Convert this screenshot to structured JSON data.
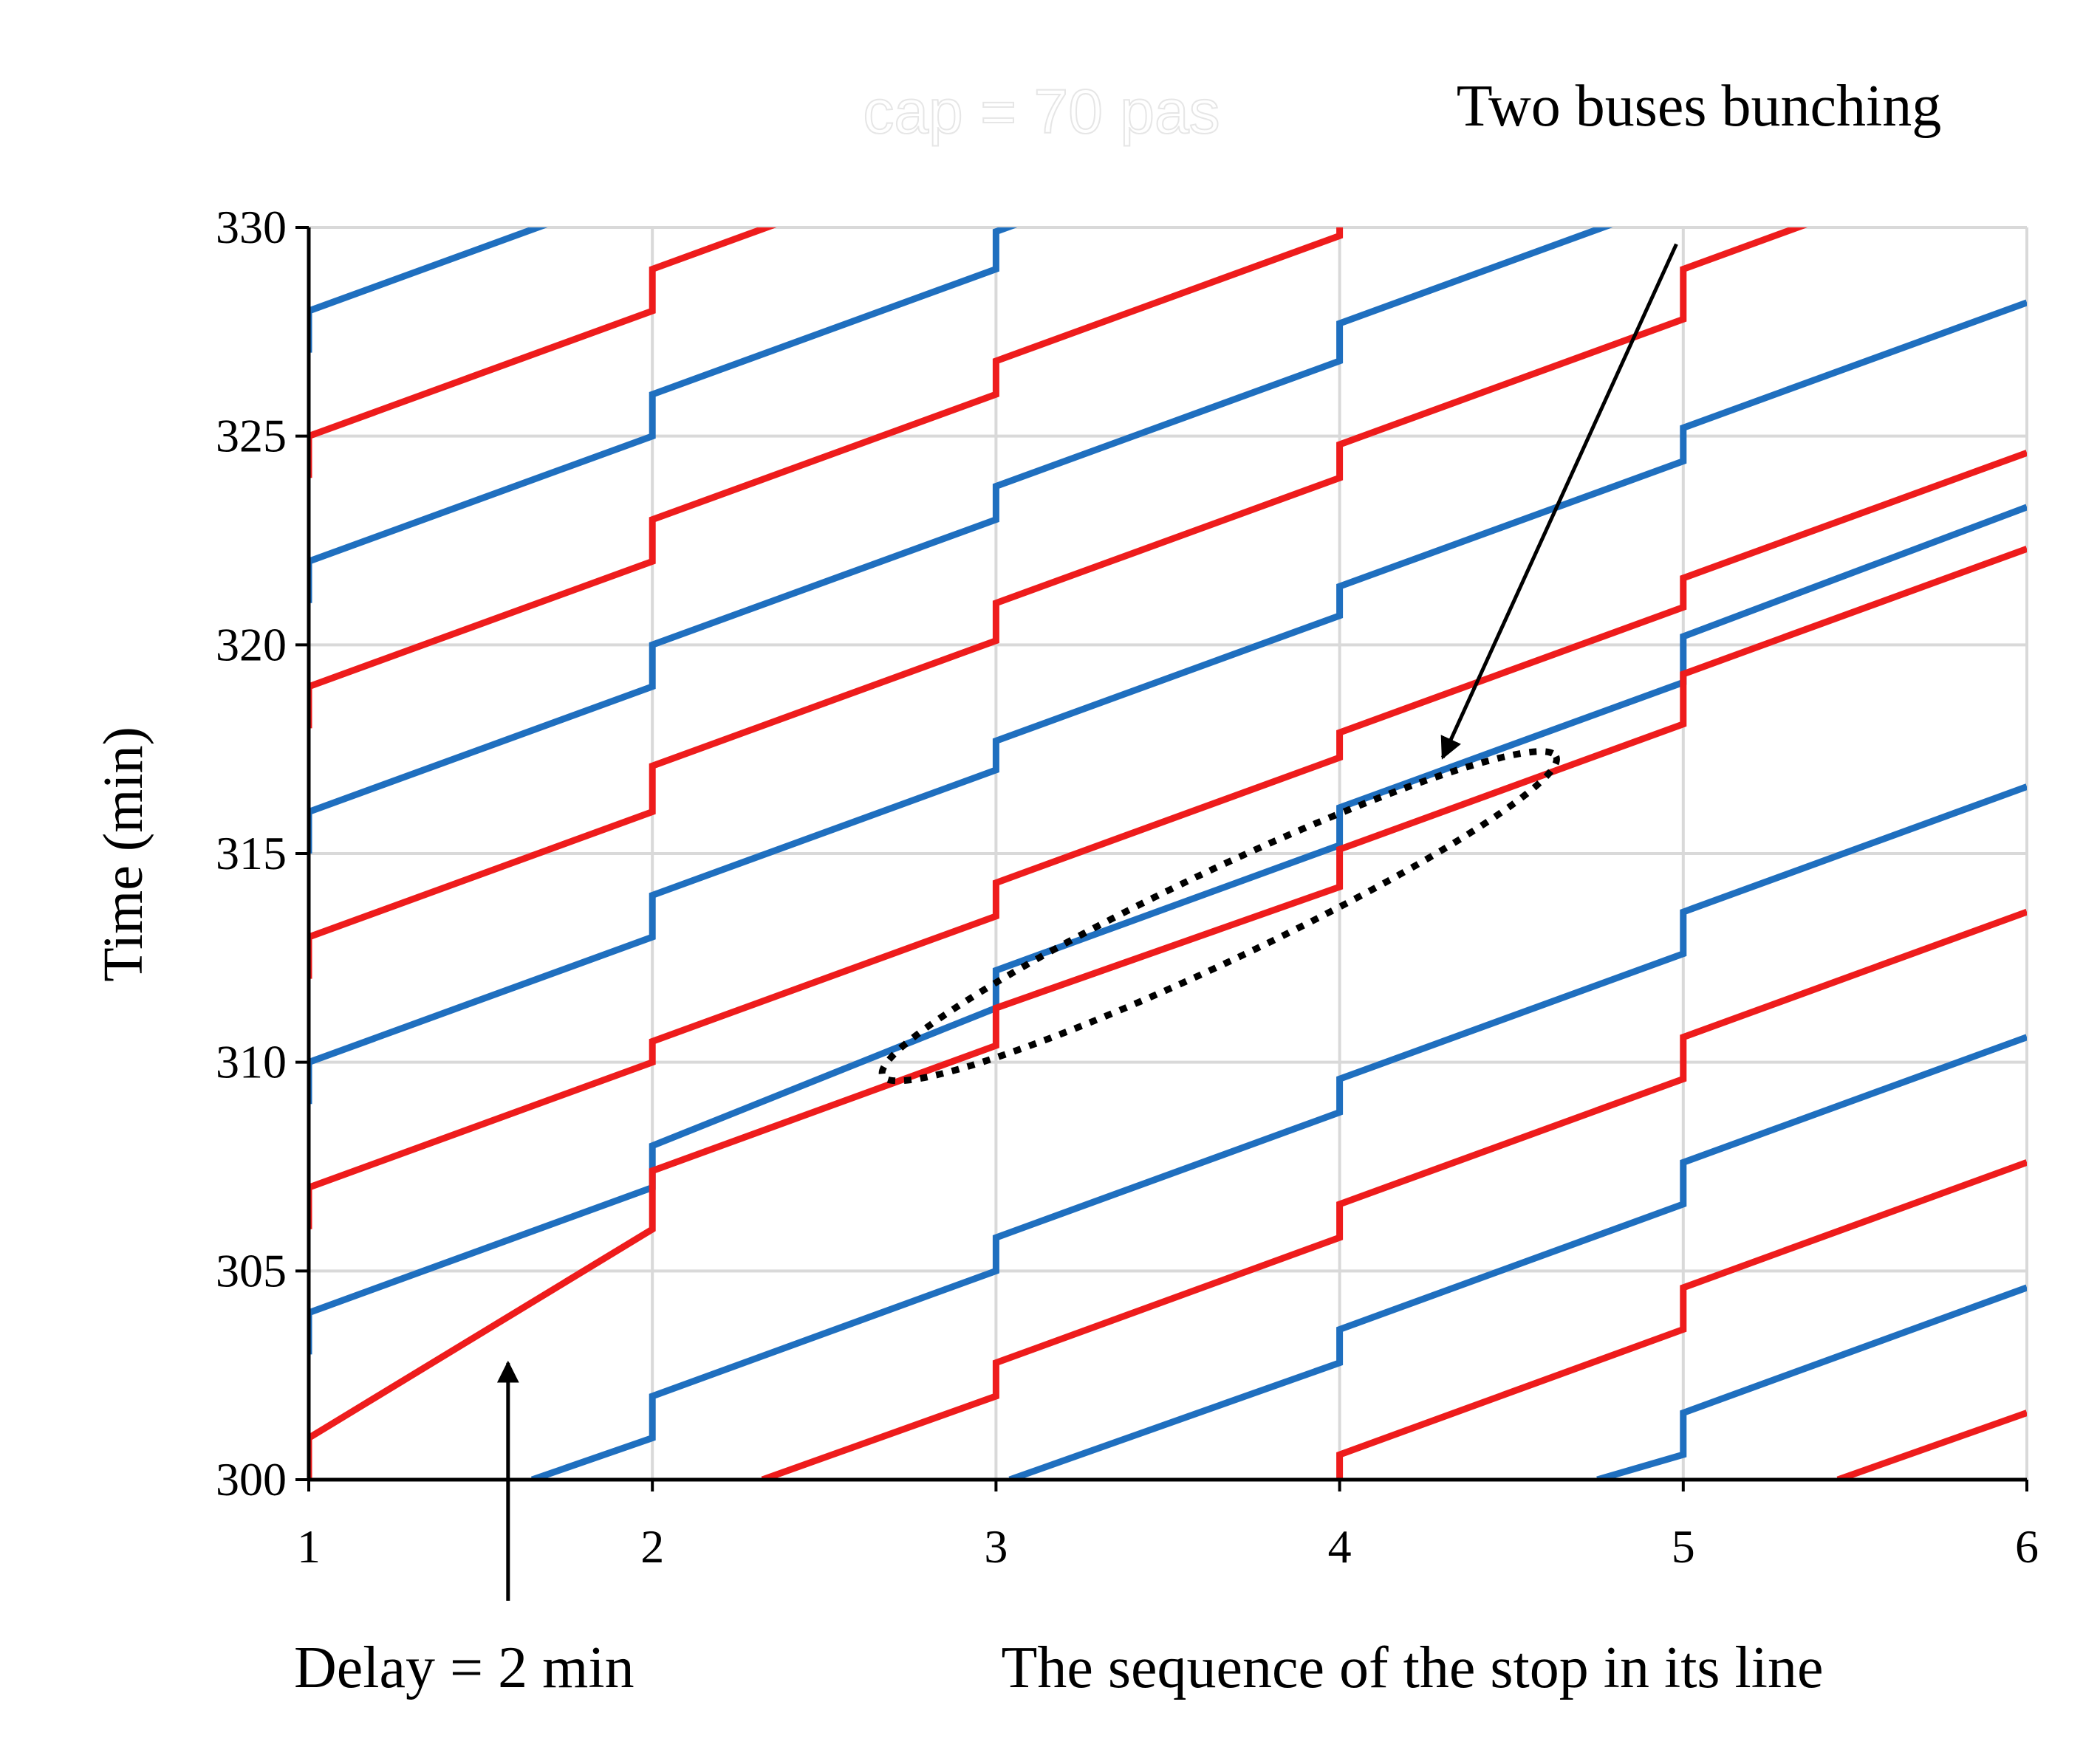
{
  "chart_data": {
    "type": "line",
    "ghost_title": "cap = 70 pas",
    "xlabel": "The sequence of the stop in its line",
    "ylabel": "Time (min)",
    "xlim": [
      1,
      6
    ],
    "ylim": [
      300,
      330
    ],
    "x_ticks": [
      "1",
      "2",
      "3",
      "4",
      "5",
      "6"
    ],
    "y_ticks": [
      "300",
      "305",
      "310",
      "315",
      "320",
      "325",
      "330"
    ],
    "grid": true,
    "colors": {
      "blue": "#1f6fbf",
      "red": "#ee1c1c",
      "grid": "#d9d9d9"
    },
    "annotations": {
      "bunching": "Two buses bunching",
      "delay": "Delay = 2 min",
      "delay_arrow": {
        "x": 1.58,
        "y_from": 297.1,
        "y_to": 302.8
      },
      "bunching_arrow": {
        "from": [
          4.98,
          329.6
        ],
        "to": [
          4.3,
          317.3
        ]
      },
      "ellipse": {
        "cx": 3.65,
        "cy": 313.5,
        "rx_stops": 1.0,
        "ry_min": 1.2,
        "tilt_min_per_stop": 3.9
      }
    },
    "series": [
      {
        "color": "blue",
        "points": [
          [
            1,
            303
          ],
          [
            1,
            304
          ],
          [
            2,
            307
          ],
          [
            2,
            308
          ],
          [
            3,
            311.3
          ],
          [
            3,
            312.2
          ],
          [
            4,
            315.2
          ],
          [
            4,
            316.1
          ],
          [
            5,
            319.1
          ],
          [
            5,
            320.2
          ],
          [
            6,
            323.3
          ]
        ]
      },
      {
        "color": "blue",
        "points": [
          [
            1,
            309
          ],
          [
            1,
            310
          ],
          [
            2,
            313
          ],
          [
            2,
            314
          ],
          [
            3,
            317
          ],
          [
            3,
            317.7
          ],
          [
            4,
            320.7
          ],
          [
            4,
            321.4
          ],
          [
            5,
            324.4
          ],
          [
            5,
            325.2
          ],
          [
            6,
            328.2
          ]
        ]
      },
      {
        "color": "blue",
        "points": [
          [
            1,
            315
          ],
          [
            1,
            316
          ],
          [
            2,
            319
          ],
          [
            2,
            320
          ],
          [
            3,
            323
          ],
          [
            3,
            323.8
          ],
          [
            4,
            326.8
          ],
          [
            4,
            327.7
          ],
          [
            5,
            330.7
          ]
        ]
      },
      {
        "color": "blue",
        "points": [
          [
            1,
            321
          ],
          [
            1,
            322
          ],
          [
            2,
            325
          ],
          [
            2,
            326
          ],
          [
            3,
            329
          ],
          [
            3,
            329.9
          ],
          [
            4,
            332.9
          ]
        ]
      },
      {
        "color": "blue",
        "points": [
          [
            1,
            327
          ],
          [
            1,
            328
          ],
          [
            2,
            331
          ]
        ]
      },
      {
        "color": "blue",
        "points": [
          [
            1.65,
            300
          ],
          [
            2,
            301
          ],
          [
            2,
            302
          ],
          [
            3,
            305
          ],
          [
            3,
            305.8
          ],
          [
            4,
            308.8
          ],
          [
            4,
            309.6
          ],
          [
            5,
            312.6
          ],
          [
            5,
            313.6
          ],
          [
            6,
            316.6
          ]
        ]
      },
      {
        "color": "blue",
        "points": [
          [
            3.04,
            300
          ],
          [
            4,
            302.8
          ],
          [
            4,
            303.6
          ],
          [
            5,
            306.6
          ],
          [
            5,
            307.6
          ],
          [
            6,
            310.6
          ]
        ]
      },
      {
        "color": "blue",
        "points": [
          [
            4.75,
            300
          ],
          [
            5,
            300.6
          ],
          [
            5,
            301.6
          ],
          [
            6,
            304.6
          ]
        ]
      },
      {
        "color": "red",
        "points": [
          [
            1,
            300
          ],
          [
            1,
            301
          ],
          [
            2,
            306
          ],
          [
            2,
            307.4
          ],
          [
            3,
            310.4
          ],
          [
            3,
            311.3
          ],
          [
            4,
            314.2
          ],
          [
            4,
            315.1
          ],
          [
            5,
            318.1
          ],
          [
            5,
            319.3
          ],
          [
            6,
            322.3
          ]
        ]
      },
      {
        "color": "red",
        "points": [
          [
            1,
            306
          ],
          [
            1,
            307
          ],
          [
            2,
            310
          ],
          [
            2,
            310.5
          ],
          [
            3,
            313.5
          ],
          [
            3,
            314.3
          ],
          [
            4,
            317.3
          ],
          [
            4,
            317.9
          ],
          [
            5,
            320.9
          ],
          [
            5,
            321.6
          ],
          [
            6,
            324.6
          ]
        ]
      },
      {
        "color": "red",
        "points": [
          [
            1,
            312
          ],
          [
            1,
            313
          ],
          [
            2,
            316
          ],
          [
            2,
            317.1
          ],
          [
            3,
            320.1
          ],
          [
            3,
            321
          ],
          [
            4,
            324
          ],
          [
            4,
            324.8
          ],
          [
            5,
            327.8
          ],
          [
            5,
            329
          ],
          [
            6,
            332
          ]
        ]
      },
      {
        "color": "red",
        "points": [
          [
            1,
            318
          ],
          [
            1,
            319
          ],
          [
            2,
            322
          ],
          [
            2,
            323
          ],
          [
            3,
            326
          ],
          [
            3,
            326.8
          ],
          [
            4,
            329.8
          ],
          [
            4,
            330.6
          ]
        ]
      },
      {
        "color": "red",
        "points": [
          [
            1,
            324
          ],
          [
            1,
            325
          ],
          [
            2,
            328
          ],
          [
            2,
            329
          ],
          [
            3,
            332
          ]
        ]
      },
      {
        "color": "red",
        "points": [
          [
            2.32,
            300
          ],
          [
            3,
            302
          ],
          [
            3,
            302.8
          ],
          [
            4,
            305.8
          ],
          [
            4,
            306.6
          ],
          [
            5,
            309.6
          ],
          [
            5,
            310.6
          ],
          [
            6,
            313.6
          ]
        ]
      },
      {
        "color": "red",
        "points": [
          [
            4,
            300
          ],
          [
            4,
            300.6
          ],
          [
            5,
            303.6
          ],
          [
            5,
            304.6
          ],
          [
            6,
            307.6
          ]
        ]
      },
      {
        "color": "red",
        "points": [
          [
            5.45,
            300
          ],
          [
            6,
            301.6
          ]
        ]
      }
    ]
  }
}
